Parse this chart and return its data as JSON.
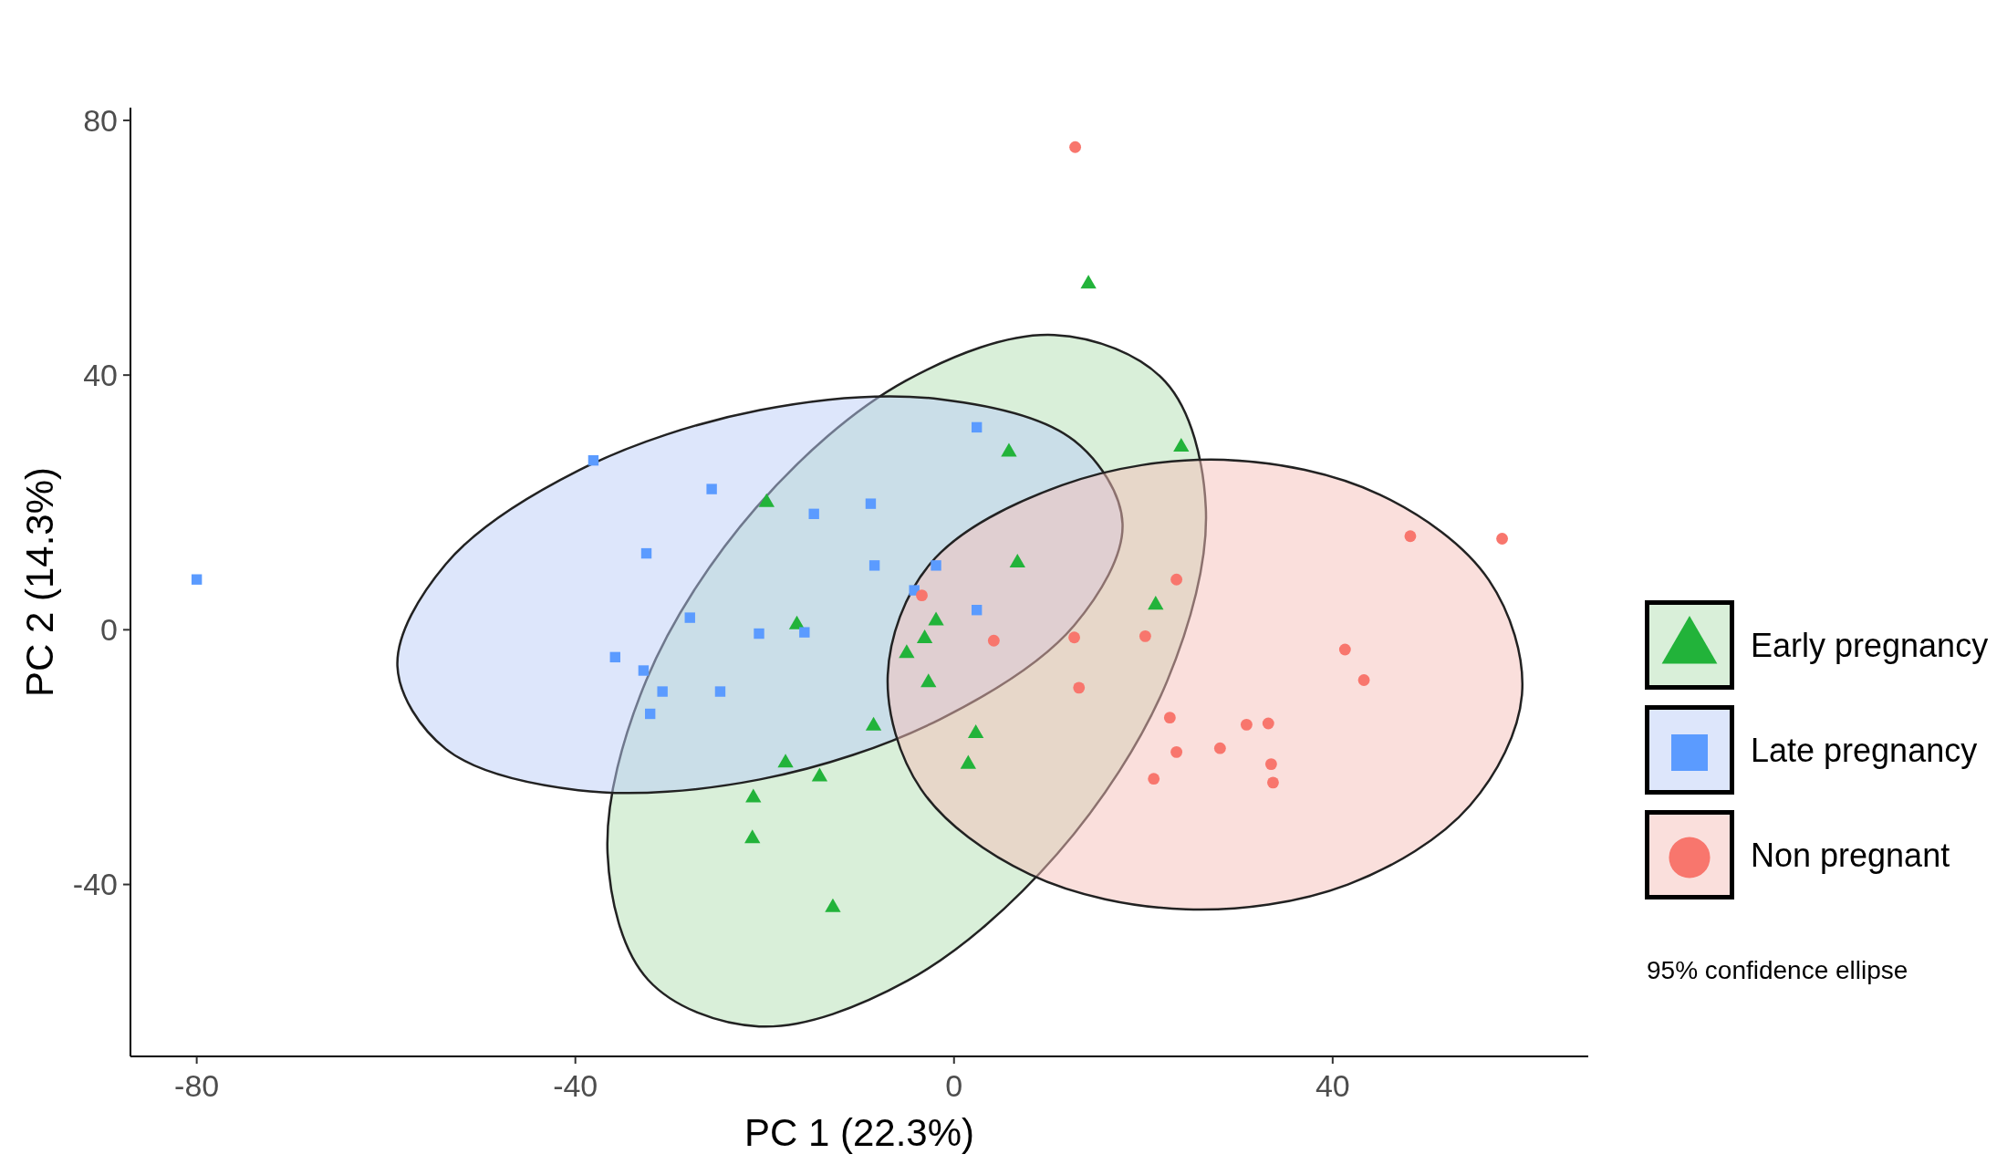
{
  "chart_data": {
    "type": "scatter",
    "xlabel": "PC 1 (22.3%)",
    "ylabel": "PC 2 (14.3%)",
    "xlim": [
      -87,
      67
    ],
    "ylim": [
      -67,
      82
    ],
    "xticks": [
      -80,
      -40,
      0,
      40
    ],
    "yticks": [
      -40,
      0,
      40,
      80
    ],
    "grid": false,
    "legend": "right",
    "annotations": [
      "95% confidence ellipse"
    ],
    "series": [
      {
        "type": "area",
        "color": "#b3e0b3",
        "x": [
          22.3,
          26.6,
          22.5,
          10.9,
          -4.9,
          -20.6,
          -32.3,
          -36.6,
          -32.5,
          -20.9,
          -5.1,
          10.6
        ],
        "values": [
          39,
          19.1,
          -8.1,
          -35.2,
          -55.1,
          -62.3,
          -55,
          -35.1,
          -7.9,
          19.2,
          39.1,
          46.3
        ]
      },
      {
        "type": "area",
        "color": "#bccef8",
        "x": [
          17.8,
          12.7,
          -1.4,
          -20.5,
          -39.7,
          -53.7,
          -58.8,
          -53.7,
          -39.7,
          -20.5,
          -1.4,
          12.7
        ],
        "values": [
          16.7,
          29.7,
          36.2,
          34.5,
          25,
          10.3,
          -5.7,
          -18.7,
          -25.2,
          -23.5,
          -14,
          0.7
        ]
      },
      {
        "type": "area",
        "color": "#f5bfba",
        "x": [
          60,
          56.5,
          45,
          28.5,
          11.4,
          -2.5,
          -7,
          -3.5,
          8,
          24.5,
          41.6,
          54.5
        ],
        "values": [
          -10.1,
          7.8,
          21.2,
          26.7,
          22.7,
          10.4,
          -7.1,
          -25,
          -38.4,
          -43.9,
          -40,
          -27.6
        ]
      },
      {
        "type": "scatter",
        "name": "Early pregnancy",
        "color": "#22b33a",
        "marker": "triangle",
        "x": [
          14.2,
          5.8,
          24,
          -19.8,
          6.7,
          21.3,
          -16.6,
          -1.9,
          -3.1,
          -5,
          -2.7,
          -8.5,
          2.3,
          -17.8,
          1.5,
          -14.2,
          -21.2,
          -21.3,
          -12.8
        ],
        "values": [
          54.3,
          27.9,
          28.7,
          20,
          10.5,
          3.9,
          0.8,
          1.4,
          -1.4,
          -3.7,
          -8.3,
          -15.1,
          -16.3,
          -20.9,
          -21.1,
          -23.1,
          -26.4,
          -32.8,
          -43.6
        ]
      },
      {
        "type": "scatter",
        "name": "Late pregnancy",
        "color": "#5b9bff",
        "marker": "square",
        "x": [
          -80,
          -38.1,
          -25.6,
          -32.5,
          -27.9,
          -35.8,
          -32.8,
          -30.8,
          -32.1,
          -24.7,
          -20.6,
          -15.8,
          -14.8,
          -8.8,
          -8.4,
          -1.9,
          -4.2,
          2.4,
          2.4
        ],
        "values": [
          7.9,
          26.6,
          22.1,
          12,
          1.9,
          -4.3,
          -6.4,
          -9.7,
          -13.2,
          -9.7,
          -0.6,
          -0.4,
          18.2,
          19.8,
          10.1,
          10.1,
          6.2,
          31.8,
          3.1
        ]
      },
      {
        "type": "scatter",
        "name": "Non pregnant",
        "color": "#f8766d",
        "marker": "circle",
        "x": [
          12.8,
          48.2,
          57.9,
          23.5,
          -3.4,
          4.2,
          12.7,
          20.2,
          13.2,
          41.3,
          43.3,
          22.8,
          30.9,
          33.2,
          23.5,
          28.1,
          33.5,
          33.7,
          21.1
        ],
        "values": [
          75.8,
          14.7,
          14.3,
          7.9,
          5.4,
          -1.7,
          -1.2,
          -1,
          -9.1,
          -3.1,
          -7.9,
          -13.8,
          -14.9,
          -14.7,
          -19.2,
          -18.6,
          -21.1,
          -24,
          -23.4
        ]
      }
    ]
  }
}
